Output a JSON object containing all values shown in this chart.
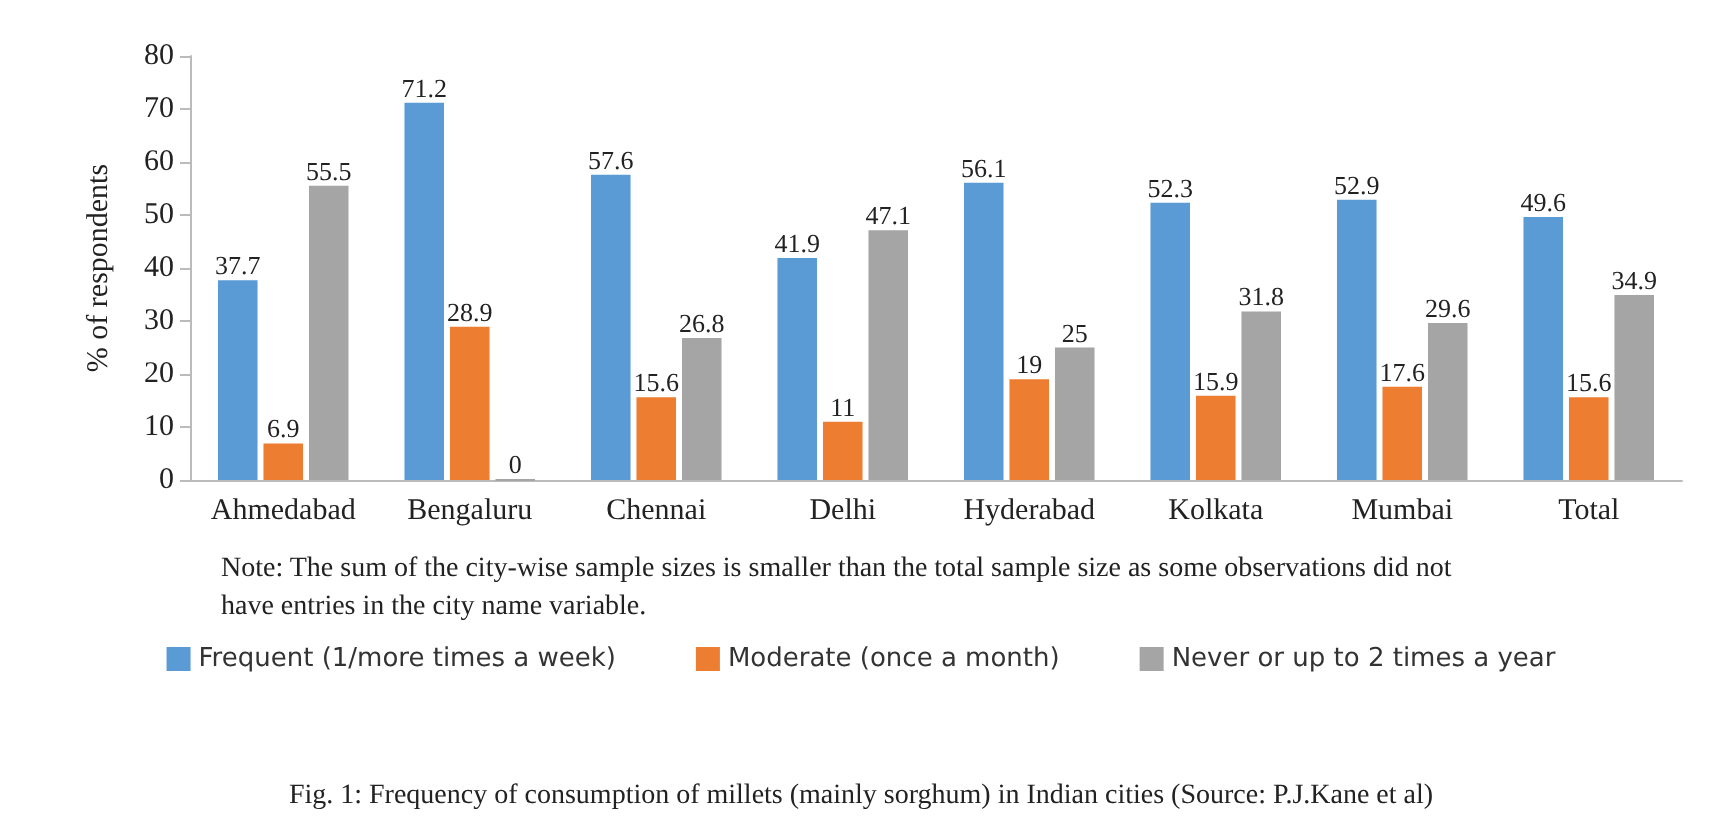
{
  "chart_data": {
    "type": "bar",
    "ylabel": "% of respondents",
    "categories": [
      "Ahmedabad",
      "Bengaluru",
      "Chennai",
      "Delhi",
      "Hyderabad",
      "Kolkata",
      "Mumbai",
      "Total"
    ],
    "series": [
      {
        "name": "Frequent (1/more times a week)",
        "color": "#5b9bd5",
        "values": [
          37.7,
          71.2,
          57.6,
          41.9,
          56.1,
          52.3,
          52.9,
          49.6
        ]
      },
      {
        "name": "Moderate (once a month)",
        "color": "#ed7d31",
        "values": [
          6.9,
          28.9,
          15.6,
          11,
          19,
          15.9,
          17.6,
          15.6
        ]
      },
      {
        "name": "Never or up to 2 times a year",
        "color": "#a5a5a5",
        "values": [
          55.5,
          0,
          26.8,
          47.1,
          25,
          31.8,
          29.6,
          34.9
        ]
      }
    ],
    "ylim": [
      0,
      80
    ],
    "yticks": [
      0,
      10,
      20,
      30,
      40,
      50,
      60,
      70,
      80
    ],
    "data_labels": true,
    "grid": false,
    "legend": "bottom",
    "annotations": [
      "Note: The sum of the city-wise sample sizes is smaller than the total sample size as some observations did not have entries in the city name variable.",
      "Fig. 1: Frequency of consumption of millets (mainly sorghum) in Indian cities (Source: P.J.Kane et al)"
    ]
  }
}
